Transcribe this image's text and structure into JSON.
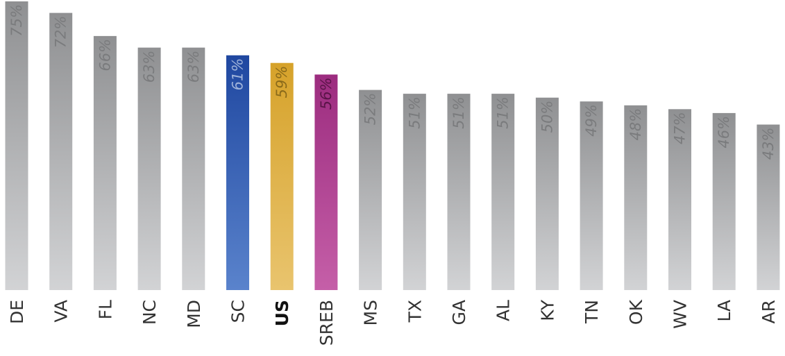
{
  "chart_data": {
    "type": "bar",
    "title": "",
    "xlabel": "",
    "ylabel": "",
    "ylim": [
      0,
      75
    ],
    "categories": [
      "DE",
      "VA",
      "FL",
      "NC",
      "MD",
      "SC",
      "US",
      "SREB",
      "MS",
      "TX",
      "GA",
      "AL",
      "KY",
      "TN",
      "OK",
      "WV",
      "LA",
      "AR"
    ],
    "values": [
      75,
      72,
      66,
      63,
      63,
      61,
      59,
      56,
      52,
      51,
      51,
      51,
      50,
      49,
      48,
      47,
      46,
      43
    ],
    "labels": [
      "75%",
      "72%",
      "66%",
      "63%",
      "63%",
      "61%",
      "59%",
      "56%",
      "52%",
      "51%",
      "51%",
      "51%",
      "50%",
      "49%",
      "48%",
      "47%",
      "46%",
      "43%"
    ],
    "highlights": {
      "SC": "blue",
      "US": "gold",
      "SREB": "magenta"
    },
    "bold_categories": [
      "US"
    ],
    "colors": {
      "default_top": "#8f9092",
      "default_bottom": "#d2d3d5",
      "default_label": "#7a7b7d",
      "blue_top": "#1f47a0",
      "blue_bottom": "#5a83cc",
      "blue_label": "#9fb3da",
      "gold_top": "#d6a22a",
      "gold_bottom": "#e9c46e",
      "gold_label": "#8a6a1a",
      "magenta_top": "#9c2c7f",
      "magenta_bottom": "#c55fa8",
      "magenta_label": "#5a1448"
    }
  }
}
